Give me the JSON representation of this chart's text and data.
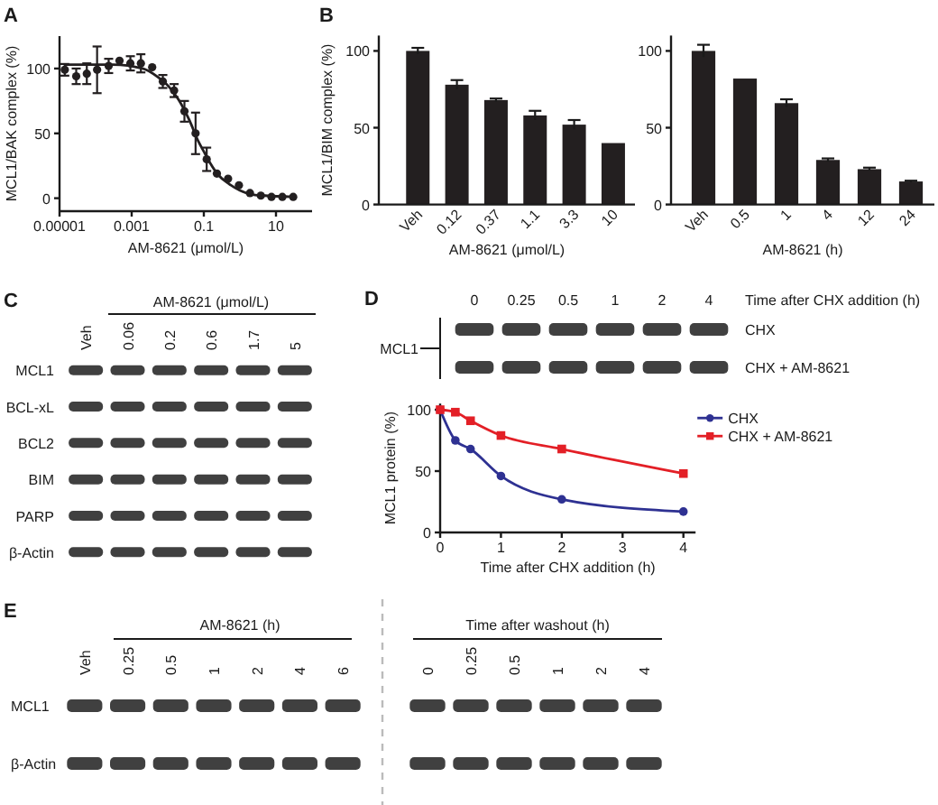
{
  "chart_data": [
    {
      "type": "scatter",
      "title": "A",
      "xlabel": "AM-8621 (μmol/L)",
      "ylabel": "MCL1/BAK complex (%)",
      "log": "x",
      "xlim": [
        1e-05,
        100
      ],
      "xticks": [
        {
          "value": 1e-05,
          "label": "0.00001"
        },
        0.001,
        0.1,
        10
      ],
      "ylim": [
        -10,
        125
      ],
      "yticks": [
        0,
        50,
        100
      ],
      "marker": "circle",
      "series": [
        {
          "color": "#231f20",
          "x": [
            1.4e-05,
            2.9e-05,
            5.7e-05,
            0.00011,
            0.00023,
            0.00046,
            0.00092,
            0.0018,
            0.0037,
            0.0073,
            0.015,
            0.029,
            0.059,
            0.12,
            0.23,
            0.47,
            0.94,
            1.9,
            3.8,
            7.5,
            15,
            30
          ],
          "values": [
            99,
            94,
            96,
            99,
            102,
            106,
            104,
            104,
            101,
            90,
            83,
            67,
            50,
            30,
            19,
            15,
            10,
            4,
            2,
            1,
            1,
            1
          ],
          "errors": [
            4.5,
            6,
            8,
            18,
            5.5,
            null,
            5.5,
            7,
            null,
            5,
            5,
            8,
            16,
            9,
            null,
            null,
            null,
            null,
            null,
            null,
            null,
            null
          ]
        },
        {
          "type": "line",
          "color": "#231f20",
          "marker": "none",
          "x": [
            1.4e-05,
            0.0003,
            0.002,
            0.005,
            0.01,
            0.02,
            0.04,
            0.07,
            0.1,
            0.15,
            0.25,
            0.5,
            1,
            2,
            5,
            30
          ],
          "values": [
            103,
            103,
            100,
            94,
            87,
            76,
            60,
            44,
            36,
            27,
            18,
            11,
            6,
            3,
            2,
            1
          ]
        }
      ]
    },
    {
      "type": "bar",
      "title": "B",
      "xlabel": "AM-8621 (μmol/L)",
      "ylabel": "MCL1/BIM complex (%)",
      "categories": [
        "Veh",
        "0.12",
        "0.37",
        "1.1",
        "3.3",
        "10"
      ],
      "values": [
        100,
        78,
        68,
        58,
        52,
        40
      ],
      "errors": [
        2,
        3,
        1,
        3,
        3,
        null
      ],
      "color": "#231f20",
      "ylim": [
        0,
        110
      ],
      "yticks": [
        0,
        50,
        100
      ]
    },
    {
      "type": "bar",
      "xlabel": "AM-8621 (h)",
      "categories": [
        "Veh",
        "0.5",
        "1",
        "4",
        "12",
        "24"
      ],
      "values": [
        100,
        82,
        66,
        29,
        23,
        15
      ],
      "errors": [
        4,
        null,
        2.5,
        1,
        1,
        0.5
      ],
      "color": "#231f20",
      "ylim": [
        0,
        110
      ],
      "yticks": [
        0,
        50,
        100
      ]
    },
    {
      "type": "other",
      "title": "C",
      "xlabel": "AM-8621 (μmol/L)",
      "categories": [
        "Veh",
        "0.06",
        "0.2",
        "0.6",
        "1.7",
        "5"
      ],
      "y_categories": [
        "MCL1",
        "BCL-xL",
        "BCL2",
        "BIM",
        "PARP",
        "β-Actin"
      ]
    },
    {
      "type": "other",
      "title": "D",
      "xlabel": "Time after CHX addition (h)",
      "ylabel": "MCL1",
      "categories": [
        "0",
        "0.25",
        "0.5",
        "1",
        "2",
        "4"
      ],
      "y2_categories": [
        "CHX",
        "CHX + AM-8621"
      ]
    },
    {
      "type": "line",
      "xlabel": "Time after CHX addition (h)",
      "ylabel": "MCL1 protein (%)",
      "x": [
        0,
        0.25,
        0.5,
        1,
        2,
        4
      ],
      "xlim": [
        0,
        4.2
      ],
      "xticks": [
        0,
        1,
        2,
        3,
        4
      ],
      "ylim": [
        0,
        105
      ],
      "yticks": [
        0,
        50,
        100
      ],
      "legend": "top right",
      "series": [
        {
          "name": "CHX",
          "color": "#2e3192",
          "marker": "circle",
          "values": [
            100,
            75,
            68,
            46,
            27,
            17
          ]
        },
        {
          "name": "CHX + AM-8621",
          "color": "#e31f26",
          "marker": "square",
          "values": [
            100,
            98,
            91,
            79,
            68,
            48
          ]
        }
      ]
    },
    {
      "type": "other",
      "title": "E",
      "xlabel": "AM-8621 (h)",
      "categories": [
        "Veh",
        "0.25",
        "0.5",
        "1",
        "2",
        "4",
        "6"
      ],
      "y_categories": [
        "MCL1",
        "β-Actin"
      ]
    },
    {
      "type": "other",
      "xlabel": "Time after washout (h)",
      "categories": [
        "0",
        "0.25",
        "0.5",
        "1",
        "2",
        "4"
      ]
    }
  ]
}
